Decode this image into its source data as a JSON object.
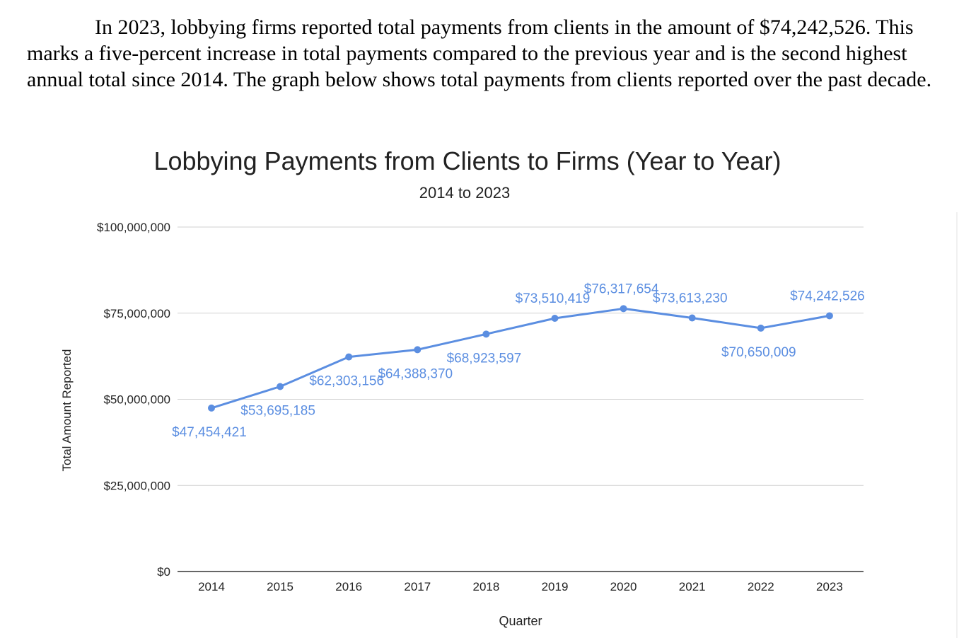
{
  "intro": {
    "text": "In 2023, lobbying firms reported total payments from clients in the amount of $74,242,526.  This marks a five-percent increase in total payments compared to the previous year and is the second highest annual total since 2014.  The graph below shows total payments from clients reported over the past decade."
  },
  "chart_data": {
    "type": "line",
    "title": "Lobbying Payments from Clients to Firms (Year to Year)",
    "subtitle": "2014 to 2023",
    "xlabel": "Quarter",
    "ylabel": "Total Amount Reported",
    "categories": [
      "2014",
      "2015",
      "2016",
      "2017",
      "2018",
      "2019",
      "2020",
      "2021",
      "2022",
      "2023"
    ],
    "series": [
      {
        "values": [
          47454421,
          53695185,
          62303156,
          64388370,
          68923597,
          73510419,
          76317654,
          73613230,
          70650009,
          74242526
        ],
        "labels": [
          "$47,454,421",
          "$53,695,185",
          "$62,303,156",
          "$64,388,370",
          "$68,923,597",
          "$73,510,419",
          "$76,317,654",
          "$73,613,230",
          "$70,650,009",
          "$74,242,526"
        ],
        "label_positions": [
          "below",
          "below",
          "below",
          "below",
          "below",
          "above",
          "above",
          "above",
          "below",
          "above"
        ]
      }
    ],
    "yticks": [
      0,
      25000000,
      50000000,
      75000000,
      100000000
    ],
    "ytick_labels": [
      "$0",
      "$25,000,000",
      "$50,000,000",
      "$75,000,000",
      "$100,000,000"
    ],
    "ylim": [
      0,
      100000000
    ],
    "grid": true,
    "legend": "none",
    "colors": {
      "line": "#5b8ee1",
      "label": "#5b8ee1",
      "grid": "#d2d2d2",
      "axis": "#333333",
      "text": "#222222"
    }
  }
}
